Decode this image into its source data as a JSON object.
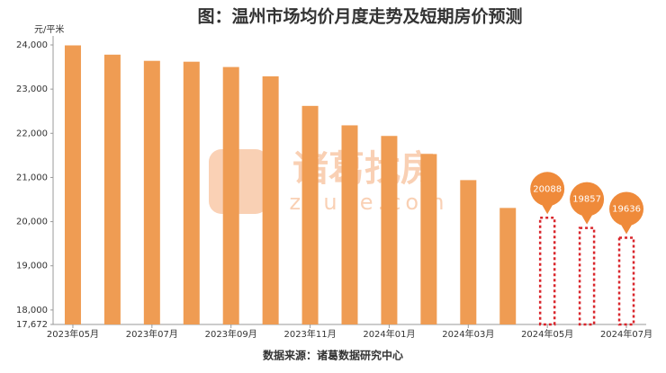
{
  "chart_data": {
    "type": "bar",
    "title": "图：温州市场均价月度走势及短期房价预测",
    "y_axis_label": "元/平米",
    "source": "数据来源：诸葛数据研究中心",
    "watermark": "诸葛找房",
    "watermark_url": "zhuge.com",
    "categories": [
      "2023年05月",
      null,
      "2023年07月",
      null,
      "2023年09月",
      null,
      "2023年11月",
      null,
      "2024年01月",
      null,
      "2024年03月",
      null,
      "2024年05月",
      null,
      "2024年07月"
    ],
    "series": [
      {
        "color": "#ef9c53",
        "style": "solid",
        "values": [
          23990,
          23780,
          23640,
          23620,
          23500,
          23290,
          22620,
          22180,
          21940,
          21530,
          20940,
          20310,
          null,
          null,
          null
        ]
      },
      {
        "color": "#d9262c",
        "style": "dashed",
        "marker_color": "#ef8a3a",
        "values": [
          null,
          null,
          null,
          null,
          null,
          null,
          null,
          null,
          null,
          null,
          null,
          null,
          20088,
          19857,
          19636
        ]
      }
    ],
    "ylim": [
      17672,
      24000
    ],
    "yticks": [
      {
        "value": 17672,
        "label": "17,672"
      },
      {
        "value": 18000,
        "label": "18,000"
      },
      {
        "value": 19000,
        "label": "19,000"
      },
      {
        "value": 20000,
        "label": "20,000"
      },
      {
        "value": 21000,
        "label": "21,000"
      },
      {
        "value": 22000,
        "label": "22,000"
      },
      {
        "value": 23000,
        "label": "23,000"
      },
      {
        "value": 24000,
        "label": "24,000"
      }
    ]
  }
}
